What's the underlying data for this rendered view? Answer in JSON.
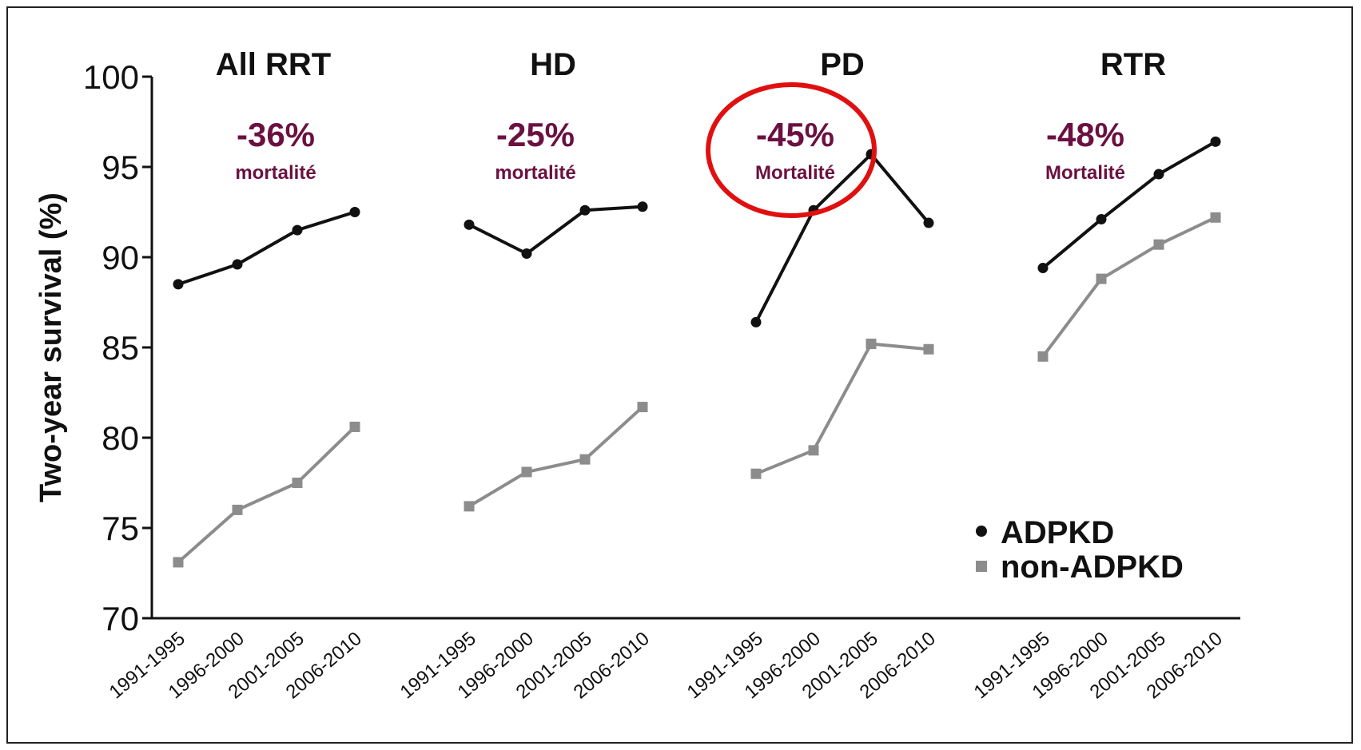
{
  "chart_data": {
    "type": "line",
    "ylabel": "Two-year survival (%)",
    "ylim": [
      70,
      100
    ],
    "yticks": [
      70,
      75,
      80,
      85,
      90,
      95,
      100
    ],
    "categories": [
      "1991-1995",
      "1996-2000",
      "2001-2005",
      "2006-2010"
    ],
    "legend": {
      "placement": "bottom-right",
      "entries": [
        {
          "name": "ADPKD",
          "marker": "circle",
          "color": "#111111"
        },
        {
          "name": "non-ADPKD",
          "marker": "square",
          "color": "#8c8c8c"
        }
      ]
    },
    "panels": [
      {
        "title": "All RRT",
        "annotation": {
          "value": "-36%",
          "label": "mortalité"
        },
        "series": [
          {
            "name": "ADPKD",
            "values": [
              88.5,
              89.6,
              91.5,
              92.5
            ]
          },
          {
            "name": "non-ADPKD",
            "values": [
              73.1,
              76.0,
              77.5,
              80.6
            ]
          }
        ]
      },
      {
        "title": "HD",
        "annotation": {
          "value": "-25%",
          "label": "mortalité"
        },
        "series": [
          {
            "name": "ADPKD",
            "values": [
              91.8,
              90.2,
              92.6,
              92.8
            ]
          },
          {
            "name": "non-ADPKD",
            "values": [
              76.2,
              78.1,
              78.8,
              81.7
            ]
          }
        ]
      },
      {
        "title": "PD",
        "annotation": {
          "value": "-45%",
          "label": "Mortalité",
          "circled": true
        },
        "series": [
          {
            "name": "ADPKD",
            "values": [
              86.4,
              92.6,
              95.7,
              91.9
            ]
          },
          {
            "name": "non-ADPKD",
            "values": [
              78.0,
              79.3,
              85.2,
              84.9
            ]
          }
        ]
      },
      {
        "title": "RTR",
        "annotation": {
          "value": "-48%",
          "label": "Mortalité"
        },
        "series": [
          {
            "name": "ADPKD",
            "values": [
              89.4,
              92.1,
              94.6,
              96.4
            ]
          },
          {
            "name": "non-ADPKD",
            "values": [
              84.5,
              88.8,
              90.7,
              92.2
            ]
          }
        ]
      }
    ]
  },
  "colors": {
    "adpkd": "#111111",
    "non_adpkd": "#8c8c8c",
    "annotation": "#6b1040",
    "highlight_circle": "#e01010"
  }
}
